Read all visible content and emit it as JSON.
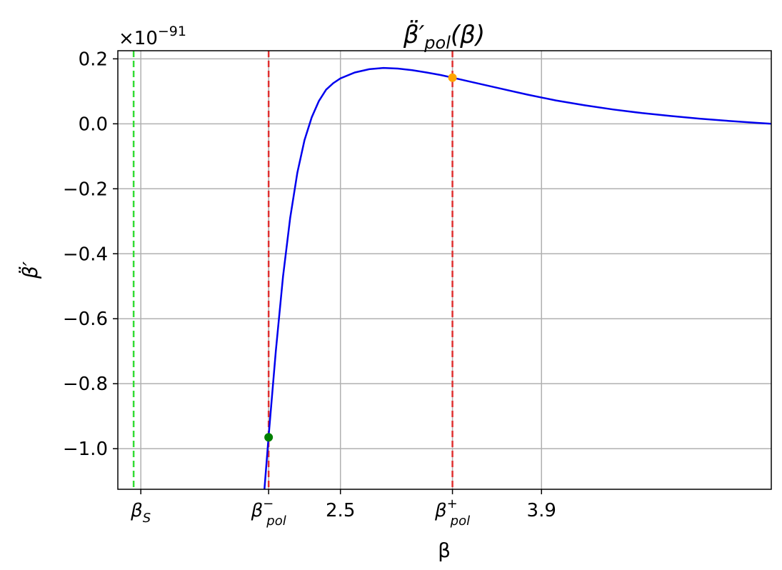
{
  "chart_data": {
    "type": "line",
    "title": "β̈′pol(β)",
    "title_parts": {
      "base": "β̈′",
      "sub": "pol",
      "arg": "(β)"
    },
    "xlabel": "β",
    "ylabel": "β̈′",
    "offset_text": {
      "base": "×10",
      "exp": "−91"
    },
    "xlim": [
      0.95,
      5.5
    ],
    "ylim": [
      -1.125,
      0.225
    ],
    "grid": true,
    "x_ticks": [
      {
        "value": 1.11,
        "base": "β",
        "sub": "S",
        "sup": ""
      },
      {
        "value": 2.0,
        "base": "β",
        "sub": "pol",
        "sup": "−"
      },
      {
        "value": 2.5,
        "base": "2.5",
        "sub": "",
        "sup": ""
      },
      {
        "value": 3.28,
        "base": "β",
        "sub": "pol",
        "sup": "+"
      },
      {
        "value": 3.9,
        "base": "3.9",
        "sub": "",
        "sup": ""
      }
    ],
    "y_ticks": [
      {
        "value": 0.2,
        "label": "0.2"
      },
      {
        "value": 0.0,
        "label": "0.0"
      },
      {
        "value": -0.2,
        "label": "−0.2"
      },
      {
        "value": -0.4,
        "label": "−0.4"
      },
      {
        "value": -0.6,
        "label": "−0.6"
      },
      {
        "value": -0.8,
        "label": "−0.8"
      },
      {
        "value": -1.0,
        "label": "−1.0"
      }
    ],
    "vlines": [
      {
        "x": 1.06,
        "color": "#33dd33",
        "style": "dashed"
      },
      {
        "x": 2.0,
        "color": "#e03030",
        "style": "dashed"
      },
      {
        "x": 3.28,
        "color": "#e03030",
        "style": "dashed"
      }
    ],
    "series": [
      {
        "color": "#0000ee",
        "x": [
          1.97,
          2.0,
          2.05,
          2.1,
          2.15,
          2.2,
          2.25,
          2.3,
          2.35,
          2.4,
          2.45,
          2.5,
          2.6,
          2.7,
          2.8,
          2.9,
          3.0,
          3.1,
          3.2,
          3.28,
          3.4,
          3.6,
          3.8,
          4.0,
          4.2,
          4.4,
          4.6,
          4.8,
          5.0,
          5.2,
          5.4,
          5.5
        ],
        "y": [
          -1.13,
          -0.96,
          -0.7,
          -0.47,
          -0.29,
          -0.15,
          -0.05,
          0.02,
          0.07,
          0.105,
          0.125,
          0.14,
          0.158,
          0.168,
          0.172,
          0.17,
          0.165,
          0.158,
          0.15,
          0.142,
          0.13,
          0.11,
          0.09,
          0.072,
          0.057,
          0.044,
          0.033,
          0.024,
          0.016,
          0.009,
          0.003,
          0.0
        ]
      }
    ],
    "points": [
      {
        "x": 2.0,
        "y": -0.965,
        "color": "#008000"
      },
      {
        "x": 3.28,
        "y": 0.142,
        "color": "#ffa500"
      }
    ]
  }
}
